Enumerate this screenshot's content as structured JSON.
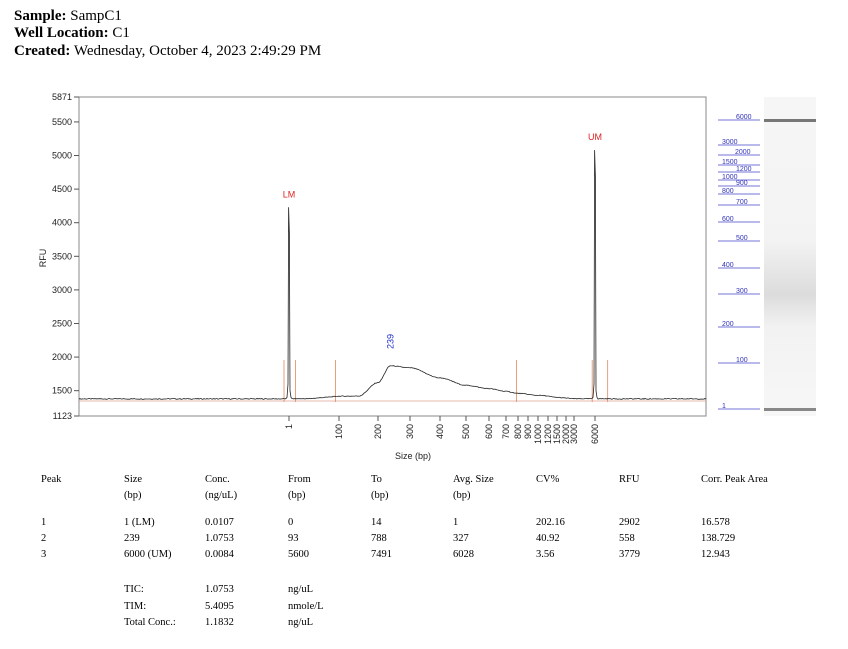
{
  "header": {
    "sample_label": "Sample:",
    "sample_value": "SampC1",
    "well_label": "Well Location:",
    "well_value": "C1",
    "created_label": "Created:",
    "created_value": "Wednesday, October 4, 2023 2:49:29 PM"
  },
  "chart_data": {
    "type": "line",
    "title": "",
    "xlabel": "Size (bp)",
    "ylabel": "RFU",
    "ylim": [
      1123,
      5871
    ],
    "y_ticks": [
      "1123",
      "1500",
      "2000",
      "2500",
      "3000",
      "3500",
      "4000",
      "4500",
      "5000",
      "5500",
      "5871"
    ],
    "x_ticks": [
      "1",
      "100",
      "200",
      "300",
      "400",
      "500",
      "600",
      "700",
      "800",
      "900",
      "1000",
      "1200",
      "1500",
      "2000",
      "3000",
      "6000"
    ],
    "series": [
      {
        "name": "SampC1 trace",
        "x_bp": [
          1,
          100,
          150,
          200,
          239,
          300,
          400,
          500,
          600,
          700,
          800,
          1000,
          1500,
          2000,
          3000,
          6000
        ],
        "y_rfu": [
          4230,
          1418,
          1420,
          1620,
          1870,
          1840,
          1690,
          1580,
          1530,
          1490,
          1460,
          1430,
          1400,
          1390,
          1380,
          5080
        ]
      }
    ],
    "annotations": [
      {
        "label": "LM",
        "x_bp": 1
      },
      {
        "label": "UM",
        "x_bp": 6000
      },
      {
        "label": "239",
        "x_bp": 239
      }
    ]
  },
  "ladder": {
    "labels": [
      "6000",
      "3000",
      "2000",
      "1500",
      "1200",
      "1000",
      "900",
      "800",
      "700",
      "600",
      "500",
      "400",
      "300",
      "200",
      "100",
      "1"
    ]
  },
  "table": {
    "headers": [
      {
        "line1": "Peak",
        "line2": ""
      },
      {
        "line1": "Size",
        "line2": "(bp)"
      },
      {
        "line1": "Conc.",
        "line2": "(ng/uL)"
      },
      {
        "line1": "From",
        "line2": "(bp)"
      },
      {
        "line1": "To",
        "line2": "(bp)"
      },
      {
        "line1": "Avg. Size",
        "line2": "(bp)"
      },
      {
        "line1": "CV%",
        "line2": ""
      },
      {
        "line1": "RFU",
        "line2": ""
      },
      {
        "line1": "Corr. Peak Area",
        "line2": ""
      }
    ],
    "rows": [
      [
        "1",
        "1 (LM)",
        "0.0107",
        "0",
        "14",
        "1",
        "202.16",
        "2902",
        "16.578"
      ],
      [
        "2",
        "239",
        "1.0753",
        "93",
        "788",
        "327",
        "40.92",
        "558",
        "138.729"
      ],
      [
        "3",
        "6000 (UM)",
        "0.0084",
        "5600",
        "7491",
        "6028",
        "3.56",
        "3779",
        "12.943"
      ]
    ],
    "summary": [
      {
        "label": "TIC:",
        "value": "1.0753",
        "unit": "ng/uL"
      },
      {
        "label": "TIM:",
        "value": "5.4095",
        "unit": "nmole/L"
      },
      {
        "label": "Total Conc.:",
        "value": "1.1832",
        "unit": "ng/uL"
      }
    ]
  }
}
